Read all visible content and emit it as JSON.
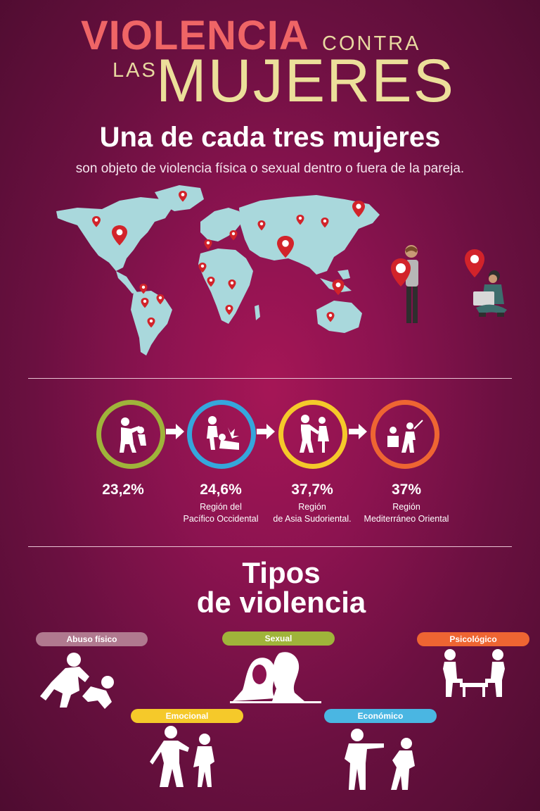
{
  "header": {
    "title_word1": "VIOLENCIA",
    "title_word2": "CONTRA",
    "title_word3": "LAS",
    "title_word4": "MUJERES"
  },
  "intro": {
    "headline": "Una de cada tres mujeres",
    "subline": "son objeto de violencia física o sexual dentro o fuera de la pareja."
  },
  "stats": [
    {
      "value": "23,2%",
      "region_line1": "",
      "region_line2": "",
      "ring_color": "#9fb43a"
    },
    {
      "value": "24,6%",
      "region_line1": "Región del",
      "region_line2": "Pacífico Occidental",
      "ring_color": "#35a6dc"
    },
    {
      "value": "37,7%",
      "region_line1": "Región",
      "region_line2": "de Asia Sudoriental.",
      "ring_color": "#f5c92a"
    },
    {
      "value": "37%",
      "region_line1": "Región",
      "region_line2": "Mediterráneo Oriental",
      "ring_color": "#ee6532"
    }
  ],
  "tipos": {
    "title_line1": "Tipos",
    "title_line2": "de violencia",
    "items": [
      {
        "label": "Abuso físico",
        "color": "#b0798f",
        "icon": "physical-abuse-icon"
      },
      {
        "label": "Sexual",
        "color": "#9fb43a",
        "icon": "sexual-violence-icon"
      },
      {
        "label": "Psicológico",
        "color": "#ee6532",
        "icon": "psychological-violence-icon"
      },
      {
        "label": "Emocional",
        "color": "#f5c92a",
        "icon": "emotional-violence-icon"
      },
      {
        "label": "Económico",
        "color": "#4ab6e2",
        "icon": "economic-violence-icon"
      }
    ]
  },
  "colors": {
    "background": "#8c1350",
    "title_red": "#ef6566",
    "title_cream": "#ecdf9a",
    "map_land": "#a9d8dc",
    "pin_red": "#d2232a"
  }
}
